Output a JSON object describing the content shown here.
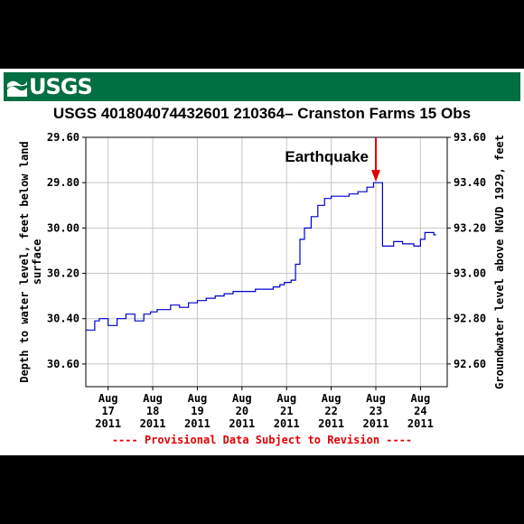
{
  "logo": {
    "text": "USGS"
  },
  "chart_data": {
    "type": "line",
    "title": "USGS 401804074432601 210364– Cranston Farms 15 Obs",
    "ylabel_left": "Depth to water level, feet below land surface",
    "ylabel_left_lines": [
      "Depth to water level, feet below land",
      "surface"
    ],
    "ylabel_right": "Groundwater level above NGVD 1929, feet",
    "ylim_left": [
      30.7,
      29.6
    ],
    "ylim_right": [
      92.5,
      93.6
    ],
    "yticks_left": [
      "29.60",
      "29.80",
      "30.00",
      "30.20",
      "30.40",
      "30.60"
    ],
    "yticks_right": [
      "93.60",
      "93.40",
      "93.20",
      "93.00",
      "92.80",
      "92.60"
    ],
    "xlim": [
      16.5,
      24.6
    ],
    "xticks": [
      {
        "x": 17,
        "lines": [
          "Aug",
          "17",
          "2011"
        ]
      },
      {
        "x": 18,
        "lines": [
          "Aug",
          "18",
          "2011"
        ]
      },
      {
        "x": 19,
        "lines": [
          "Aug",
          "19",
          "2011"
        ]
      },
      {
        "x": 20,
        "lines": [
          "Aug",
          "20",
          "2011"
        ]
      },
      {
        "x": 21,
        "lines": [
          "Aug",
          "21",
          "2011"
        ]
      },
      {
        "x": 22,
        "lines": [
          "Aug",
          "22",
          "2011"
        ]
      },
      {
        "x": 23,
        "lines": [
          "Aug",
          "23",
          "2011"
        ]
      },
      {
        "x": 24,
        "lines": [
          "Aug",
          "24",
          "2011"
        ]
      }
    ],
    "grid": true,
    "line_color": "#0000cc",
    "series": [
      {
        "x": [
          16.5,
          16.7,
          16.8,
          17.0,
          17.2,
          17.4,
          17.6,
          17.8,
          17.95,
          18.1,
          18.4,
          18.6,
          18.8,
          19.0,
          19.2,
          19.4,
          19.6,
          19.8,
          20.0,
          20.3,
          20.5,
          20.7,
          20.85,
          20.95,
          21.1,
          21.2,
          21.3,
          21.4,
          21.55,
          21.7,
          21.85,
          22.0,
          22.2,
          22.4,
          22.6,
          22.8,
          22.95,
          23.05,
          23.15,
          23.4,
          23.6,
          23.85,
          24.0,
          24.1,
          24.3,
          24.35
        ],
        "y": [
          30.45,
          30.41,
          30.4,
          30.43,
          30.4,
          30.38,
          30.41,
          30.38,
          30.37,
          30.36,
          30.34,
          30.35,
          30.33,
          30.32,
          30.31,
          30.3,
          30.29,
          30.28,
          30.28,
          30.27,
          30.27,
          30.26,
          30.25,
          30.24,
          30.23,
          30.16,
          30.05,
          30.0,
          29.95,
          29.9,
          29.87,
          29.86,
          29.86,
          29.85,
          29.84,
          29.82,
          29.8,
          29.8,
          30.08,
          30.06,
          30.07,
          30.08,
          30.05,
          30.02,
          30.03,
          30.03
        ]
      }
    ],
    "annotations": [
      {
        "text": "Earthquake",
        "x": 23.0,
        "y": 29.8
      }
    ],
    "footer_note": "---- Provisional Data Subject to Revision ----"
  }
}
